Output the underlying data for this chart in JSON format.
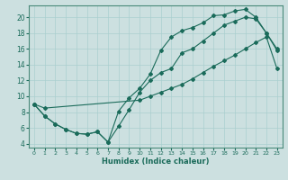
{
  "xlabel": "Humidex (Indice chaleur)",
  "xlim": [
    -0.5,
    23.5
  ],
  "ylim": [
    3.5,
    21.5
  ],
  "xticks": [
    0,
    1,
    2,
    3,
    4,
    5,
    6,
    7,
    8,
    9,
    10,
    11,
    12,
    13,
    14,
    15,
    16,
    17,
    18,
    19,
    20,
    21,
    22,
    23
  ],
  "yticks": [
    4,
    6,
    8,
    10,
    12,
    14,
    16,
    18,
    20
  ],
  "bg_color": "#cce0e0",
  "line_color": "#1a6b5a",
  "grid_color": "#aacfcf",
  "line1_x": [
    0,
    1,
    2,
    3,
    4,
    5,
    6,
    7,
    8,
    9,
    10,
    11,
    12,
    13,
    14,
    15,
    16,
    17,
    18,
    19,
    20,
    21,
    22,
    23
  ],
  "line1_y": [
    9.0,
    7.5,
    6.5,
    5.8,
    5.3,
    5.2,
    5.5,
    4.2,
    8.1,
    9.8,
    11.0,
    12.8,
    15.8,
    17.5,
    18.3,
    18.7,
    19.3,
    20.2,
    20.3,
    20.8,
    21.0,
    20.0,
    18.0,
    16.0
  ],
  "line2_x": [
    0,
    1,
    2,
    3,
    4,
    5,
    6,
    7,
    8,
    9,
    10,
    11,
    12,
    13,
    14,
    15,
    16,
    17,
    18,
    19,
    20,
    21,
    22,
    23
  ],
  "line2_y": [
    9.0,
    7.5,
    6.5,
    5.8,
    5.3,
    5.2,
    5.5,
    4.2,
    6.2,
    8.3,
    10.5,
    12.0,
    13.0,
    13.5,
    15.5,
    16.0,
    17.0,
    18.0,
    19.0,
    19.5,
    20.0,
    19.8,
    18.0,
    15.8
  ],
  "line3_x": [
    0,
    1,
    10,
    11,
    12,
    13,
    14,
    15,
    16,
    17,
    18,
    19,
    20,
    21,
    22,
    23
  ],
  "line3_y": [
    9.0,
    8.5,
    9.5,
    10.0,
    10.5,
    11.0,
    11.5,
    12.2,
    13.0,
    13.8,
    14.5,
    15.2,
    16.0,
    16.8,
    17.5,
    13.5
  ]
}
